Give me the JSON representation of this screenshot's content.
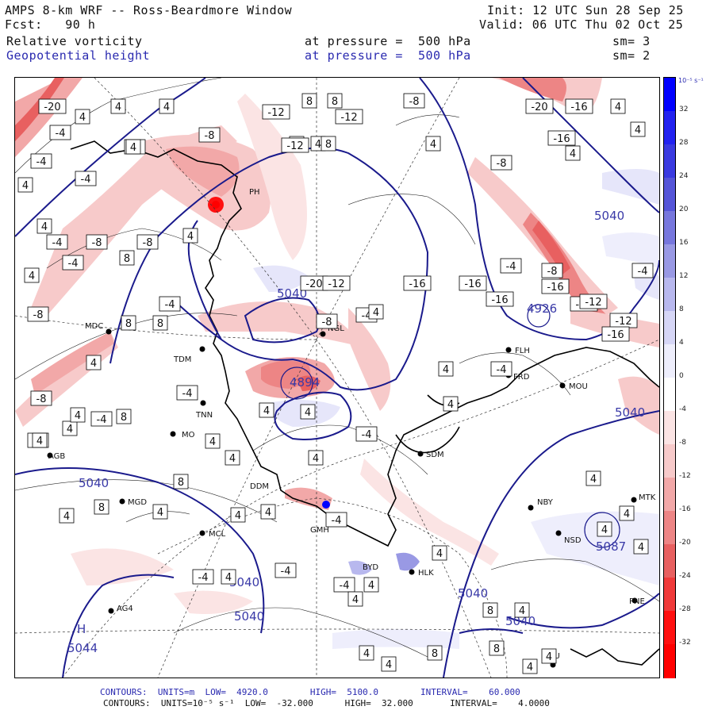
{
  "header": {
    "title": "AMPS 8-km WRF -- Ross-Beardmore Window",
    "forecast": "Fcst:   90 h",
    "init": "Init: 12 UTC Sun 28 Sep 25",
    "valid": "Valid: 06 UTC Thu 02 Oct 25",
    "field1_name": "Relative vorticity",
    "field1_level": "at pressure =  500 hPa",
    "field1_smooth": "sm= 3",
    "field2_name": "Geopotential height",
    "field2_level": "at pressure =  500 hPa",
    "field2_smooth": "sm= 2"
  },
  "colorbar": {
    "unit_label": "10⁻⁵ s⁻¹",
    "ticks": [
      "32",
      "28",
      "24",
      "20",
      "16",
      "12",
      "8",
      "4",
      "0",
      "-4",
      "-8",
      "-12",
      "-16",
      "-20",
      "-24",
      "-28",
      "-32"
    ],
    "colors": [
      "#0000ff",
      "#2222f0",
      "#3a3ae0",
      "#5555d8",
      "#7777dd",
      "#9999e4",
      "#b8b8ee",
      "#d6d6f6",
      "#eeeefc",
      "#ffffff",
      "#fbe4e4",
      "#f7caca",
      "#f2a8a8",
      "#ed8585",
      "#e86060",
      "#f03a3a",
      "#ff1010",
      "#ff0000"
    ]
  },
  "footer": {
    "line1": "CONTOURS:  UNITS=m  LOW=  4920.0        HIGH=  5100.0        INTERVAL=    60.000",
    "line2": "CONTOURS:  UNITS=10⁻⁵ s⁻¹  LOW=  -32.000      HIGH=  32.000       INTERVAL=    4.0000"
  },
  "map": {
    "stations": [
      "MDC",
      "TDM",
      "TNN",
      "MO",
      "MGD",
      "NGL",
      "FLH",
      "FRD",
      "MOU",
      "SDM",
      "NBY",
      "MTK",
      "NSD",
      "PNE",
      "HLK",
      "AG4",
      "PHU",
      "PH",
      "DDM",
      "GMH",
      "MCL",
      "AGB",
      "BYD"
    ],
    "height_labels": [
      "5040",
      "5040",
      "5040",
      "5040",
      "5040",
      "5040",
      "5040",
      "5040"
    ],
    "height_extrema": [
      {
        "type": "H",
        "value": "5087"
      },
      {
        "type": "H",
        "value": "5044"
      },
      {
        "type": "L",
        "value": "4926"
      },
      {
        "type": "L",
        "value": "4894"
      }
    ],
    "vorticity_labels": [
      "-20",
      "4",
      "4",
      "-4",
      "-12",
      "4",
      "8",
      "8",
      "-8",
      "-12",
      "-8",
      "4",
      "4",
      "8",
      "4",
      "-20",
      "-16",
      "4",
      "-8",
      "-16",
      "4",
      "-12",
      "-4",
      "4",
      "-8",
      "4",
      "-4",
      "4",
      "4",
      "-4",
      "4",
      "-4",
      "-8",
      "-8",
      "8",
      "-8",
      "4",
      "-4",
      "-20",
      "-12",
      "-16",
      "-16",
      "4",
      "-4",
      "-16",
      "-4",
      "4",
      "-8",
      "4",
      "-4",
      "-8",
      "-16",
      "-20",
      "-12",
      "-4",
      "-12",
      "-16",
      "-8",
      "4",
      "-8",
      "8",
      "8",
      "-4",
      "4",
      "-4",
      "4",
      "4",
      "-4",
      "4",
      "4",
      "4",
      "-4",
      "4",
      "4",
      "8",
      "8",
      "8",
      "4",
      "4",
      "4",
      "-4",
      "4",
      "-4",
      "-4",
      "4",
      "4",
      "4",
      "8",
      "4",
      "4",
      "4",
      "8",
      "8",
      "4",
      "4",
      "8",
      "4",
      "4",
      "4",
      "4",
      "4"
    ]
  }
}
